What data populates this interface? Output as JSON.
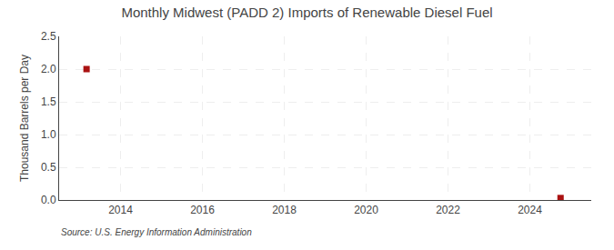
{
  "chart_data": {
    "type": "scatter",
    "title": "Monthly Midwest (PADD 2) Imports of Renewable Diesel Fuel",
    "y_label": "Thousand Barrels per Day",
    "annotations": [
      "Source: U.S. Energy Information Administration"
    ],
    "x": [
      2013.17,
      2024.75
    ],
    "values": [
      2.0,
      0.03
    ],
    "color": "#aa1111",
    "marker": "square",
    "xlim": [
      2012.5,
      2025.5
    ],
    "xticks": [
      2014,
      2016,
      2018,
      2020,
      2022,
      2024
    ],
    "ylim": [
      0.0,
      2.5
    ],
    "yticks": [
      {
        "value": 0.0,
        "label": "0.0"
      },
      0.5,
      {
        "value": 1.0,
        "label": "1.0"
      },
      1.5,
      {
        "value": 2.0,
        "label": "2.0"
      },
      2.5
    ],
    "grid": true
  }
}
